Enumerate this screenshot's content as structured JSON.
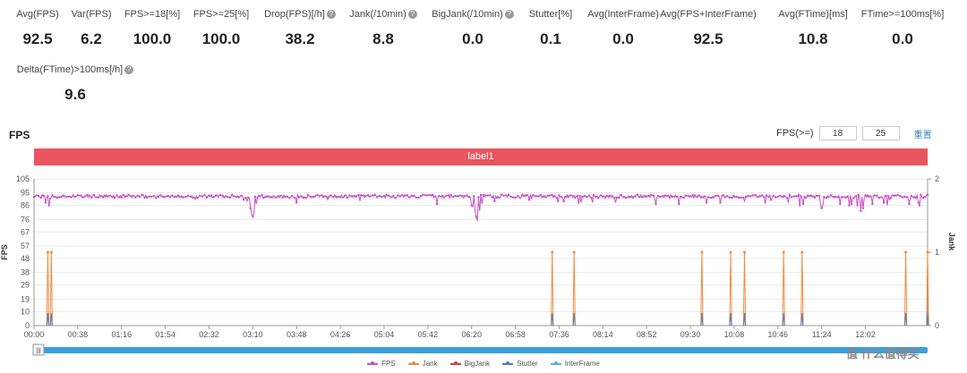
{
  "stats": [
    {
      "label": "Avg(FPS)",
      "value": "92.5",
      "help": false
    },
    {
      "label": "Var(FPS)",
      "value": "6.2",
      "help": false
    },
    {
      "label": "FPS>=18[%]",
      "value": "100.0",
      "help": false
    },
    {
      "label": "FPS>=25[%]",
      "value": "100.0",
      "help": false
    },
    {
      "label": "Drop(FPS)[/h]",
      "value": "38.2",
      "help": true
    },
    {
      "label": "Jank(/10min)",
      "value": "8.8",
      "help": true
    },
    {
      "label": "BigJank(/10min)",
      "value": "0.0",
      "help": true
    },
    {
      "label": "Stutter[%]",
      "value": "0.1",
      "help": false
    },
    {
      "label": "Avg(InterFrame)",
      "value": "0.0",
      "help": false
    },
    {
      "label": "Avg(FPS+InterFrame)",
      "value": "92.5",
      "help": false
    },
    {
      "label": "Avg(FTime)[ms]",
      "value": "10.8",
      "help": false
    },
    {
      "label": "FTime>=100ms[%]",
      "value": "0.0",
      "help": false
    },
    {
      "label": "Delta(FTime)>100ms[/h]",
      "value": "9.6",
      "help": true
    }
  ],
  "help_glyph": "?",
  "section_title": "FPS",
  "fps_filter": {
    "label": "FPS(>=)",
    "value1": "18",
    "value2": "25",
    "reset_label": "重置"
  },
  "label_bar": "label1",
  "watermark": "值 什么值得买",
  "scroll_handle": "|||",
  "chart_data": {
    "type": "line",
    "y_left": {
      "label": "FPS",
      "ticks": [
        "105",
        "95",
        "86",
        "76",
        "67",
        "57",
        "48",
        "38",
        "29",
        "19",
        "10",
        "0"
      ],
      "range": [
        0,
        105
      ]
    },
    "y_right": {
      "label": "Jank",
      "ticks": [
        "2",
        "1",
        "0"
      ],
      "range": [
        0,
        2
      ]
    },
    "x_ticks": [
      "00:00",
      "00:38",
      "01:16",
      "01:54",
      "02:32",
      "03:10",
      "03:48",
      "04:26",
      "05:04",
      "05:42",
      "06:20",
      "06:58",
      "07:36",
      "08:14",
      "08:52",
      "09:30",
      "10:08",
      "10:46",
      "11:24",
      "12:02"
    ],
    "x_range_sec": [
      0,
      776
    ],
    "fps_series": {
      "name": "FPS",
      "baseline": 92.5,
      "dips": [
        [
          10,
          88
        ],
        [
          13,
          85
        ],
        [
          14,
          91
        ],
        [
          140,
          91
        ],
        [
          182,
          90
        ],
        [
          185,
          89
        ],
        [
          188,
          84
        ],
        [
          189,
          80
        ],
        [
          190,
          78
        ],
        [
          191,
          80
        ],
        [
          193,
          87
        ],
        [
          199,
          91
        ],
        [
          228,
          88
        ],
        [
          255,
          90
        ],
        [
          283,
          89
        ],
        [
          350,
          87
        ],
        [
          380,
          86
        ],
        [
          381,
          85
        ],
        [
          383,
          82
        ],
        [
          384,
          78
        ],
        [
          385,
          75
        ],
        [
          387,
          82
        ],
        [
          389,
          87
        ],
        [
          400,
          89
        ],
        [
          430,
          90
        ],
        [
          455,
          88
        ],
        [
          460,
          89
        ],
        [
          473,
          87
        ],
        [
          475,
          88
        ],
        [
          485,
          88
        ],
        [
          505,
          88
        ],
        [
          540,
          87
        ],
        [
          560,
          87
        ],
        [
          584,
          88
        ],
        [
          596,
          88
        ],
        [
          617,
          89
        ],
        [
          635,
          87
        ],
        [
          640,
          90
        ],
        [
          655,
          88
        ],
        [
          665,
          85
        ],
        [
          668,
          87
        ],
        [
          683,
          87
        ],
        [
          684,
          84
        ],
        [
          685,
          86
        ],
        [
          700,
          87
        ],
        [
          708,
          86
        ],
        [
          710,
          87
        ],
        [
          715,
          85
        ],
        [
          718,
          82
        ],
        [
          720,
          84
        ],
        [
          728,
          87
        ],
        [
          738,
          88
        ],
        [
          741,
          86
        ],
        [
          743,
          90
        ],
        [
          760,
          87
        ],
        [
          768,
          88
        ],
        [
          769,
          85
        ]
      ]
    },
    "jank_series": {
      "name": "Jank",
      "events_sec": [
        12,
        15,
        450,
        469,
        580,
        605,
        617,
        651,
        667,
        757,
        776
      ]
    },
    "bigjank_series": {
      "name": "BigJank",
      "events_sec": []
    },
    "stutter_series": {
      "name": "Stutter",
      "events_sec": [
        12,
        15,
        450,
        469,
        580,
        605,
        617,
        651,
        667,
        757,
        776
      ]
    },
    "interframe_series": {
      "name": "InterFrame",
      "events_sec": []
    },
    "colors": {
      "FPS": "#c94fc4",
      "Jank": "#f28c3c",
      "BigJank": "#d9423a",
      "Stutter": "#4a7fc9",
      "InterFrame": "#5ab4e0"
    },
    "legend_position": "bottom"
  }
}
